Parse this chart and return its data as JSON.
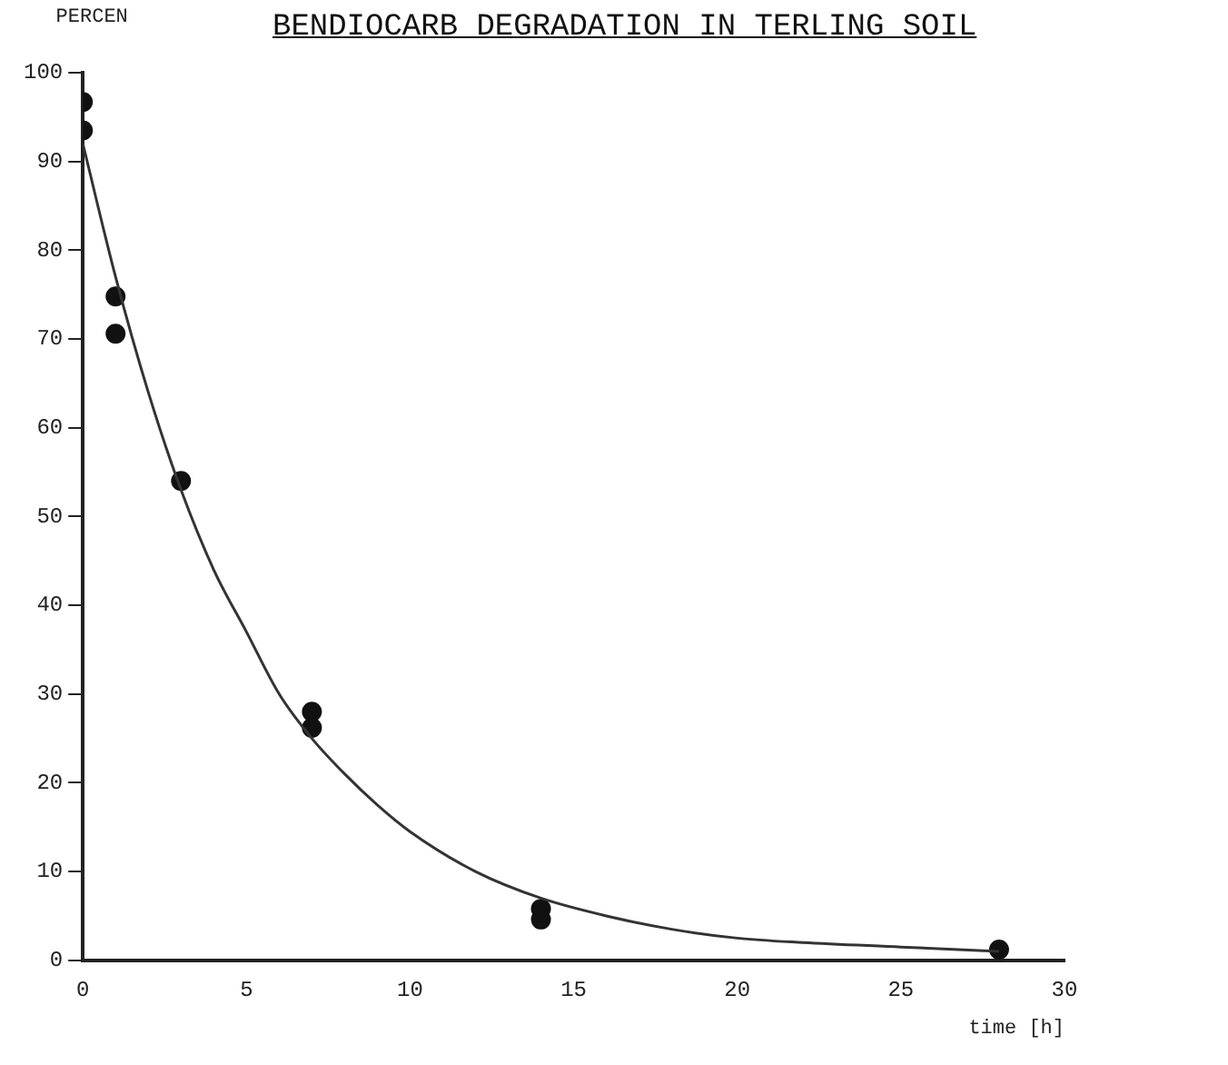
{
  "chart_data": {
    "type": "scatter",
    "title": "BENDIOCARB DEGRADATION IN TERLING SOIL",
    "xlabel": "time [h]",
    "ylabel": "PERCEN",
    "xlim": [
      0,
      30
    ],
    "xticks": [
      0,
      5,
      10,
      15,
      20,
      25,
      30
    ],
    "ylim": [
      0,
      100
    ],
    "yticks": [
      0,
      10,
      20,
      30,
      40,
      50,
      60,
      70,
      80,
      90,
      100
    ],
    "grid": false,
    "legend": false,
    "marker": "circle",
    "series": [
      {
        "color": "#111111",
        "x": [
          0,
          0,
          1,
          1,
          3,
          7,
          7,
          14,
          14,
          28
        ],
        "values": [
          96.7,
          93.5,
          74.8,
          70.6,
          54,
          28,
          26.2,
          5.8,
          4.6,
          1.2
        ]
      },
      {
        "type": "line",
        "color": "#333333",
        "line_style": "solid",
        "marker": "none",
        "x": [
          0,
          1,
          2,
          3,
          4,
          5,
          6,
          7,
          8,
          9,
          10,
          12,
          14,
          16,
          18,
          20,
          22,
          25,
          28
        ],
        "values": [
          92,
          77,
          64,
          53,
          44,
          37,
          30,
          25,
          21,
          17.5,
          14.5,
          10,
          7,
          5,
          3.5,
          2.5,
          2,
          1.5,
          1
        ]
      }
    ]
  }
}
